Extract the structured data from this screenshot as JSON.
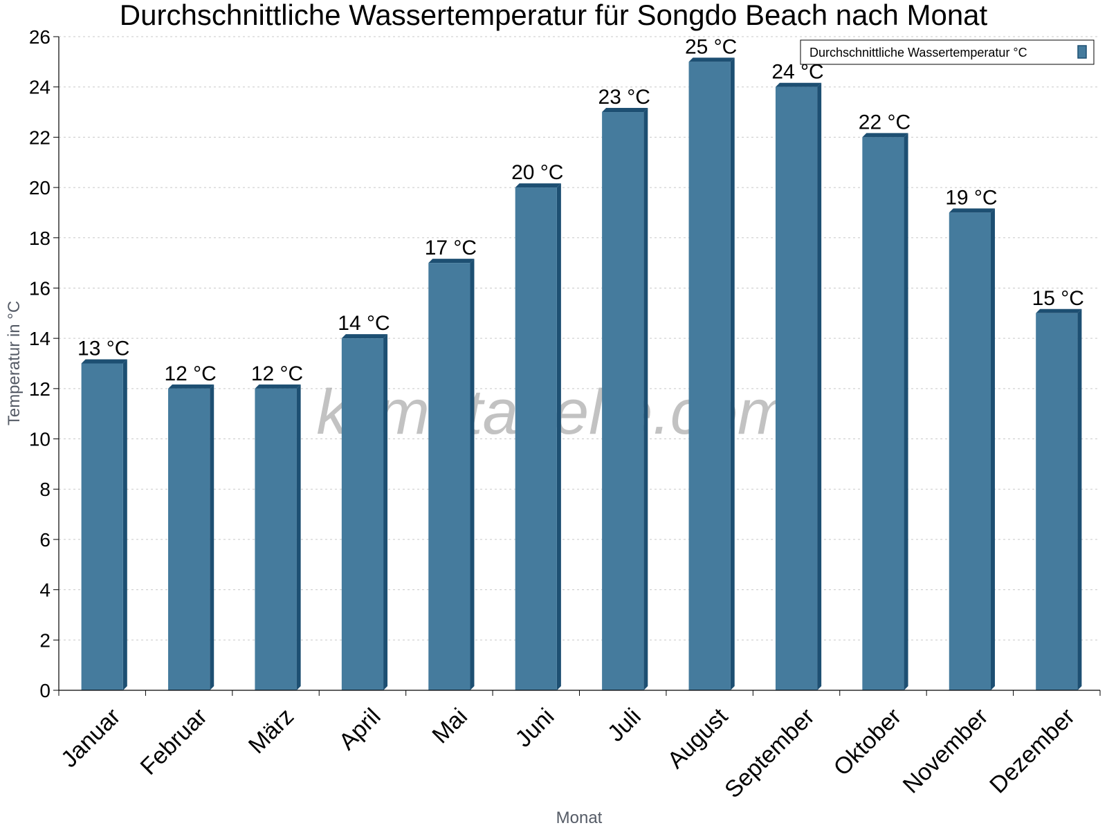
{
  "chart_data": {
    "type": "bar",
    "title": "Durchschnittliche Wassertemperatur für Songdo Beach nach Monat",
    "xlabel": "Monat",
    "ylabel": "Temperatur in °C",
    "categories": [
      "Januar",
      "Februar",
      "März",
      "April",
      "Mai",
      "Juni",
      "Juli",
      "August",
      "September",
      "Oktober",
      "November",
      "Dezember"
    ],
    "series": [
      {
        "name": "Durchschnittliche Wassertemperatur °C",
        "values": [
          13,
          12,
          12,
          14,
          17,
          20,
          23,
          25,
          24,
          22,
          19,
          15
        ]
      }
    ],
    "data_labels": [
      "13 °C",
      "12 °C",
      "12 °C",
      "14 °C",
      "17 °C",
      "20 °C",
      "23 °C",
      "25 °C",
      "24 °C",
      "22 °C",
      "19 °C",
      "15 °C"
    ],
    "ylim": [
      0,
      26
    ],
    "yticks": [
      0,
      2,
      4,
      6,
      8,
      10,
      12,
      14,
      16,
      18,
      20,
      22,
      24,
      26
    ],
    "grid": true,
    "legend_position": "top-right",
    "bar_color": "#457b9d",
    "bar_side_color": "#1d4f72",
    "watermark": "klimatabelle.com"
  }
}
